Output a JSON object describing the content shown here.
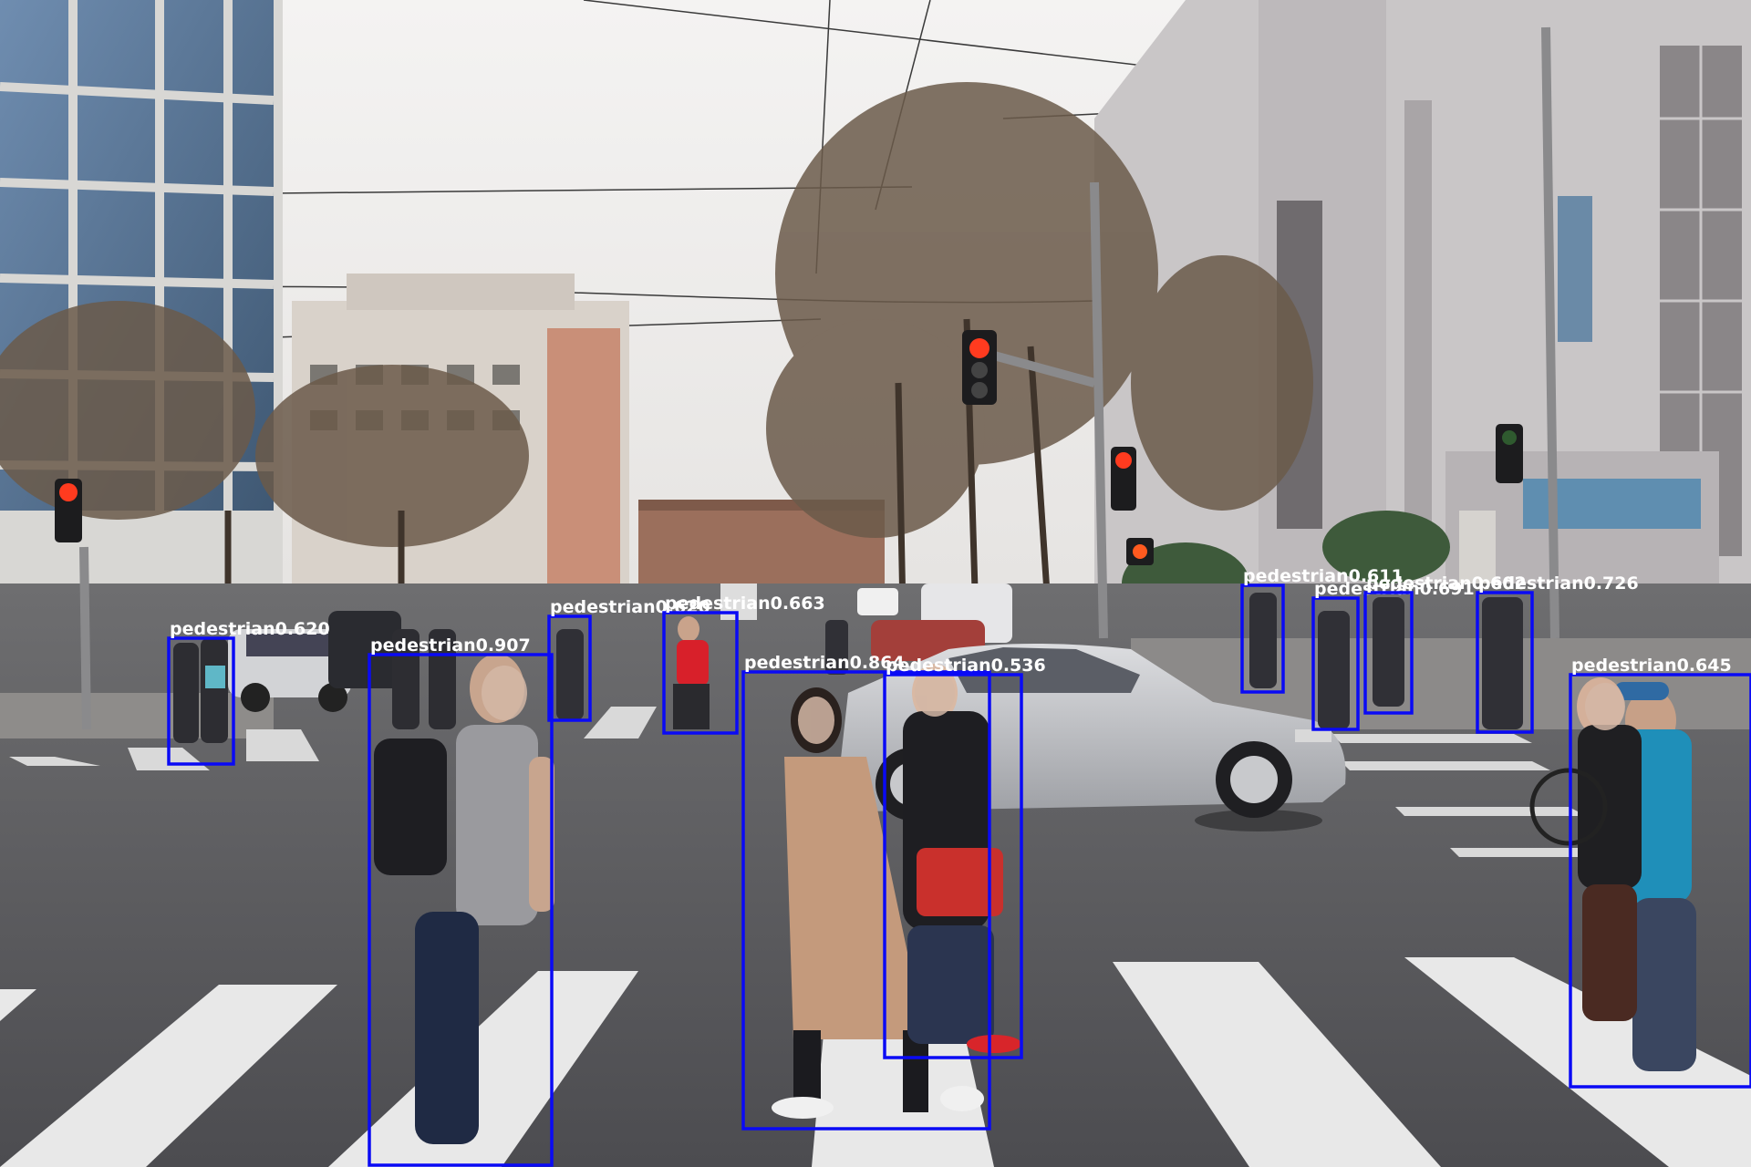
{
  "image": {
    "description_label": "street-crosswalk-scene",
    "box_color": "#0a0af5",
    "label_color": "#ffffff"
  },
  "detections": [
    {
      "class": "pedestrian",
      "score": "0.620",
      "label": "pedestrian0.620"
    },
    {
      "class": "pedestrian",
      "score": "0.907",
      "label": "pedestrian0.907"
    },
    {
      "class": "pedestrian",
      "score": "0.620",
      "label": "pedestrian0.620"
    },
    {
      "class": "pedestrian",
      "score": "0.663",
      "label": "pedestrian0.663"
    },
    {
      "class": "pedestrian",
      "score": "0.864",
      "label": "pedestrian0.864"
    },
    {
      "class": "pedestrian",
      "score": "0.536",
      "label": "pedestrian0.536"
    },
    {
      "class": "pedestrian",
      "score": "0.611",
      "label": "pedestrian0.611"
    },
    {
      "class": "pedestrian",
      "score": "0.691",
      "label": "pedestrian0.691"
    },
    {
      "class": "pedestrian",
      "score": "0.602",
      "label": "pedestrian0.602"
    },
    {
      "class": "pedestrian",
      "score": "0.726",
      "label": "pedestrian0.726"
    },
    {
      "class": "pedestrian",
      "score": "0.645",
      "label": "pedestrian0.645"
    }
  ]
}
